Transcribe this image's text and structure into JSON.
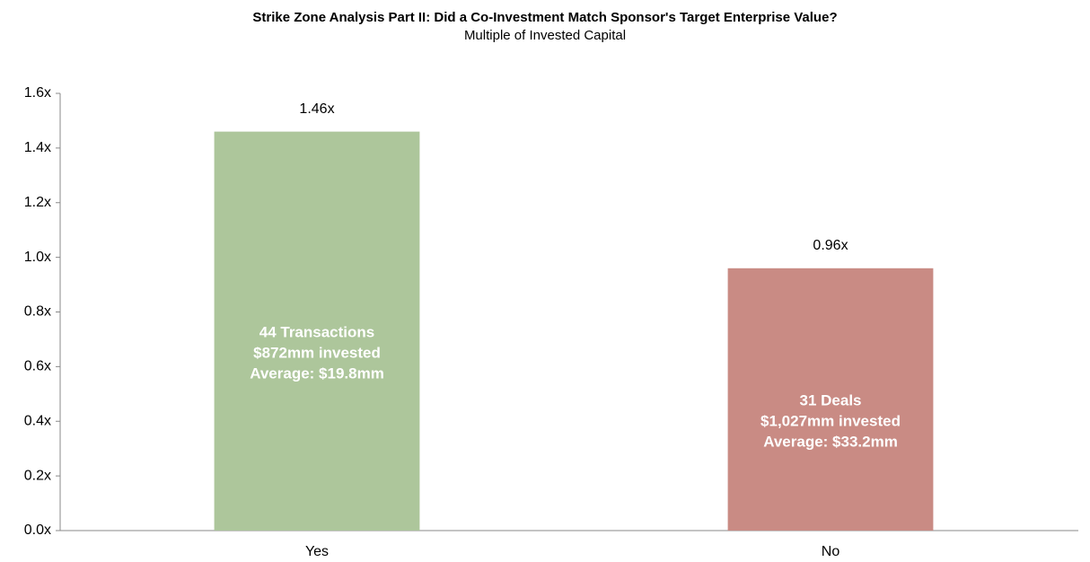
{
  "chart_data": {
    "type": "bar",
    "title": "Strike Zone Analysis Part II: Did a Co-Investment Match Sponsor's Target Enterprise Value?",
    "subtitle": "Multiple of Invested Capital",
    "categories": [
      "Yes",
      "No"
    ],
    "values": [
      1.46,
      0.96
    ],
    "value_labels": [
      "1.46x",
      "0.96x"
    ],
    "colors": [
      "#adc69b",
      "#c98b84"
    ],
    "bar_annotations": [
      [
        "44 Transactions",
        "$872mm invested",
        "Average: $19.8mm"
      ],
      [
        "31 Deals",
        "$1,027mm invested",
        "Average: $33.2mm"
      ]
    ],
    "ylim": [
      0,
      1.6
    ],
    "yticks": [
      {
        "value": 0,
        "label": "0.0x"
      },
      {
        "value": 0.2,
        "label": "0.2x"
      },
      {
        "value": 0.4,
        "label": "0.4x"
      },
      {
        "value": 0.6,
        "label": "0.6x"
      },
      {
        "value": 0.8,
        "label": "0.8x"
      },
      {
        "value": 1.0,
        "label": "1.0x"
      },
      {
        "value": 1.2,
        "label": "1.2x"
      },
      {
        "value": 1.4,
        "label": "1.4x"
      },
      {
        "value": 1.6,
        "label": "1.6x"
      }
    ],
    "grid": false
  }
}
